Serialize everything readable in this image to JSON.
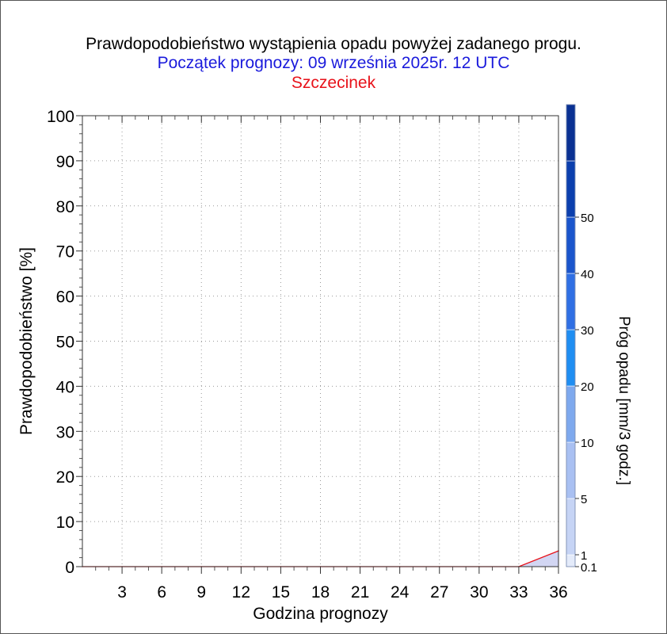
{
  "chart_data": {
    "type": "area",
    "title": "Prawdopodobieństwo wystąpienia opadu powyżej zadanego progu.",
    "subtitle": "Początek prognozy: 09 września 2025r. 12 UTC",
    "location": "Szczecinek",
    "xlabel": "Godzina prognozy",
    "ylabel": "Prawdopodobieństwo [%]",
    "colorbar_label": "Próg opadu [mm/3 godz.]",
    "xlim": [
      0,
      36
    ],
    "ylim": [
      0,
      100
    ],
    "x_ticks": [
      3,
      6,
      9,
      12,
      15,
      18,
      21,
      24,
      27,
      30,
      33,
      36
    ],
    "y_ticks": [
      0,
      10,
      20,
      30,
      40,
      50,
      60,
      70,
      80,
      90,
      100
    ],
    "grid": true,
    "thresholds": [
      "0.1",
      "1",
      "5",
      "10",
      "20",
      "30",
      "40",
      "50"
    ],
    "threshold_colors": [
      "#e4ebfa",
      "#c6d4f5",
      "#a9c0f2",
      "#7ea9ee",
      "#1f8ef2",
      "#2f6fe4",
      "#1a55cc",
      "#0b3fae",
      "#0a3193"
    ],
    "line_color": "#e8121a",
    "series": [
      {
        "name": "0.1",
        "x": [
          0,
          3,
          6,
          9,
          12,
          15,
          18,
          21,
          24,
          27,
          30,
          33,
          36
        ],
        "values": [
          0,
          0,
          0,
          0,
          0,
          0,
          0,
          0,
          0,
          0,
          0,
          0,
          3.5
        ]
      }
    ]
  }
}
